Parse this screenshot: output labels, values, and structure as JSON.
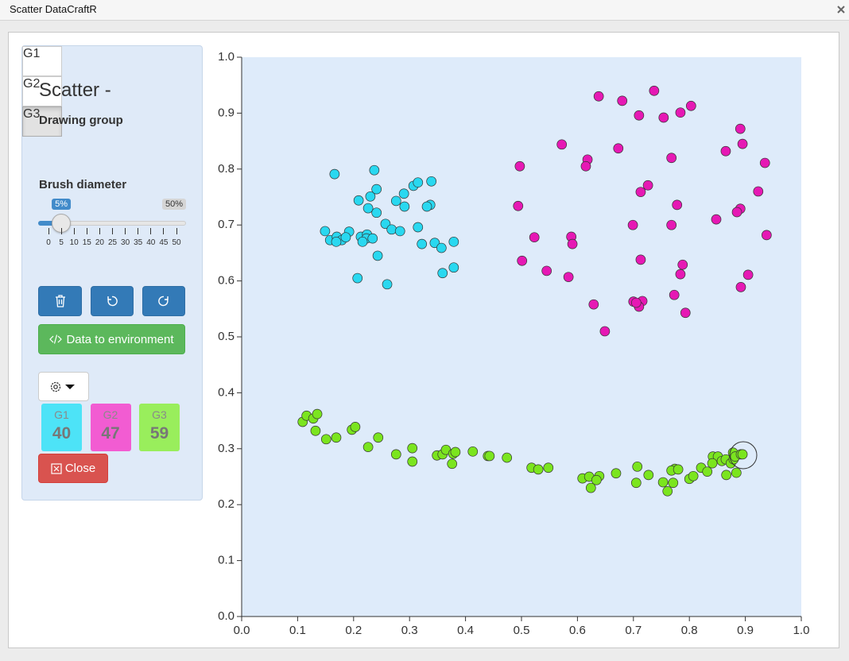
{
  "window": {
    "title": "Scatter DataCraftR"
  },
  "sidebar": {
    "title": "Scatter -",
    "group_label": "Drawing group",
    "active_group": 2,
    "brush_label": "Brush diameter",
    "brush": {
      "value": 5,
      "value_label": "5%",
      "max_label": "50%",
      "ticks": [
        0,
        5,
        10,
        15,
        20,
        25,
        30,
        35,
        40,
        45,
        50
      ]
    },
    "export_button": "Data to environment",
    "close_button": "Close"
  },
  "chart_data": {
    "type": "scatter",
    "xlim": [
      0,
      1
    ],
    "ylim": [
      0,
      1
    ],
    "xticks": [
      {
        "value": 0,
        "label": "0.0"
      },
      0.1,
      0.2,
      0.3,
      0.4,
      0.5,
      0.6,
      0.7,
      0.8,
      0.9,
      {
        "value": 1,
        "label": "1.0"
      }
    ],
    "yticks": [
      {
        "value": 0,
        "label": "0.0"
      },
      0.1,
      0.2,
      0.3,
      0.4,
      0.5,
      0.6,
      0.7,
      0.8,
      0.9,
      {
        "value": 1,
        "label": "1.0"
      }
    ],
    "series": [
      {
        "name": "G1",
        "color": "#29d8f0",
        "badge_color": "#4de3f7",
        "count": 40,
        "x": [
          0.166,
          0.237,
          0.209,
          0.23,
          0.241,
          0.29,
          0.276,
          0.226,
          0.241,
          0.291,
          0.307,
          0.315,
          0.339,
          0.337,
          0.331,
          0.257,
          0.149,
          0.192,
          0.268,
          0.283,
          0.315,
          0.158,
          0.17,
          0.179,
          0.169,
          0.186,
          0.213,
          0.224,
          0.223,
          0.234,
          0.216,
          0.243,
          0.322,
          0.345,
          0.357,
          0.379,
          0.207,
          0.26,
          0.359,
          0.379
        ],
        "values": [
          0.791,
          0.798,
          0.744,
          0.751,
          0.764,
          0.756,
          0.743,
          0.73,
          0.722,
          0.733,
          0.77,
          0.776,
          0.778,
          0.736,
          0.733,
          0.702,
          0.689,
          0.688,
          0.692,
          0.689,
          0.696,
          0.673,
          0.679,
          0.673,
          0.67,
          0.678,
          0.679,
          0.683,
          0.676,
          0.676,
          0.67,
          0.645,
          0.666,
          0.668,
          0.659,
          0.67,
          0.605,
          0.594,
          0.614,
          0.624
        ]
      },
      {
        "name": "G2",
        "color": "#e619b4",
        "badge_color": "#f25cd2",
        "count": 47,
        "x": [
          0.737,
          0.638,
          0.68,
          0.803,
          0.71,
          0.754,
          0.784,
          0.891,
          0.572,
          0.673,
          0.865,
          0.895,
          0.618,
          0.615,
          0.497,
          0.768,
          0.935,
          0.726,
          0.713,
          0.923,
          0.494,
          0.778,
          0.891,
          0.885,
          0.699,
          0.768,
          0.848,
          0.523,
          0.589,
          0.591,
          0.938,
          0.501,
          0.713,
          0.788,
          0.545,
          0.905,
          0.584,
          0.784,
          0.892,
          0.773,
          0.7,
          0.629,
          0.716,
          0.71,
          0.793,
          0.649,
          0.705
        ],
        "values": [
          0.94,
          0.93,
          0.922,
          0.913,
          0.896,
          0.892,
          0.901,
          0.872,
          0.844,
          0.837,
          0.832,
          0.845,
          0.817,
          0.805,
          0.805,
          0.82,
          0.811,
          0.771,
          0.759,
          0.76,
          0.734,
          0.736,
          0.729,
          0.723,
          0.7,
          0.7,
          0.71,
          0.678,
          0.679,
          0.666,
          0.682,
          0.636,
          0.638,
          0.629,
          0.618,
          0.611,
          0.607,
          0.612,
          0.589,
          0.575,
          0.563,
          0.558,
          0.564,
          0.554,
          0.543,
          0.51,
          0.561
        ]
      },
      {
        "name": "G3",
        "color": "#7be51f",
        "badge_color": "#99ee5c",
        "count": 59,
        "x": [
          0.109,
          0.116,
          0.128,
          0.135,
          0.132,
          0.151,
          0.169,
          0.197,
          0.203,
          0.226,
          0.244,
          0.276,
          0.305,
          0.305,
          0.349,
          0.359,
          0.365,
          0.378,
          0.382,
          0.376,
          0.413,
          0.44,
          0.443,
          0.474,
          0.518,
          0.53,
          0.548,
          0.609,
          0.621,
          0.639,
          0.634,
          0.624,
          0.669,
          0.707,
          0.705,
          0.727,
          0.753,
          0.771,
          0.774,
          0.768,
          0.78,
          0.761,
          0.8,
          0.807,
          0.821,
          0.832,
          0.842,
          0.851,
          0.858,
          0.865,
          0.841,
          0.866,
          0.874,
          0.879,
          0.878,
          0.882,
          0.884,
          0.892,
          0.895
        ],
        "values": [
          0.348,
          0.359,
          0.354,
          0.362,
          0.332,
          0.317,
          0.32,
          0.334,
          0.339,
          0.303,
          0.32,
          0.29,
          0.301,
          0.277,
          0.288,
          0.29,
          0.298,
          0.291,
          0.294,
          0.273,
          0.295,
          0.287,
          0.287,
          0.284,
          0.266,
          0.263,
          0.266,
          0.247,
          0.25,
          0.251,
          0.244,
          0.23,
          0.256,
          0.268,
          0.239,
          0.253,
          0.24,
          0.239,
          0.264,
          0.261,
          0.263,
          0.224,
          0.246,
          0.251,
          0.266,
          0.259,
          0.286,
          0.286,
          0.278,
          0.281,
          0.274,
          0.253,
          0.274,
          0.281,
          0.293,
          0.286,
          0.257,
          0.29,
          0.29
        ]
      }
    ]
  }
}
